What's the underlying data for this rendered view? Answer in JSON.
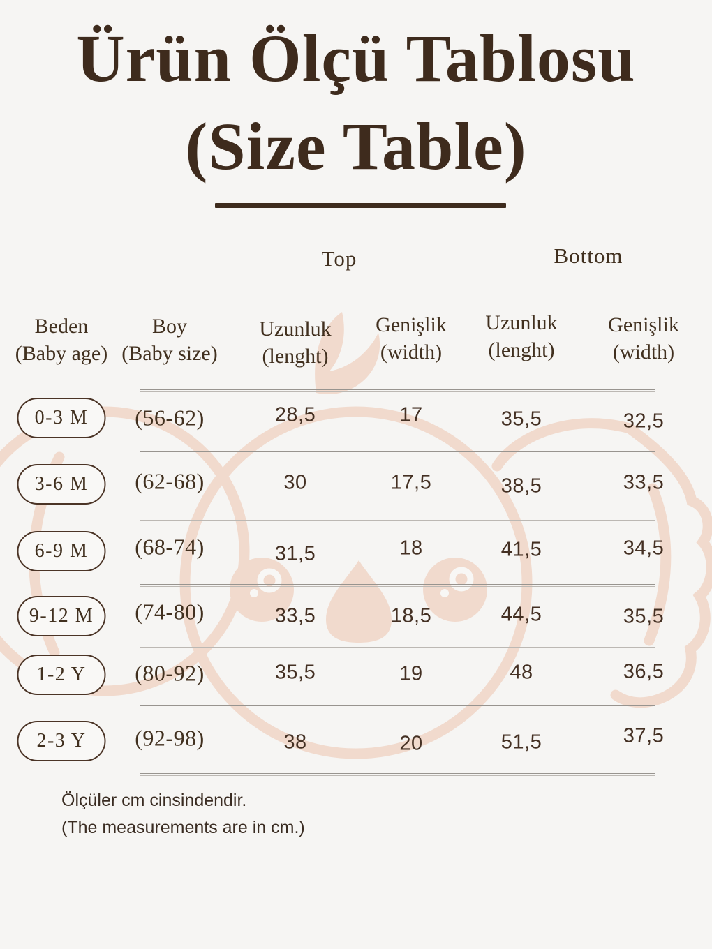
{
  "page": {
    "title_line1": "Ürün Ölçü Tablosu",
    "title_line2": "(Size Table)",
    "footer_line1": "Ölçüler cm cinsindendir.",
    "footer_line2": "(The measurements are in cm.)"
  },
  "table": {
    "group_headers": {
      "top": "Top",
      "bottom": "Bottom"
    },
    "columns": [
      {
        "line1": "Beden",
        "line2": "(Baby age)"
      },
      {
        "line1": "Boy",
        "line2": "(Baby size)"
      },
      {
        "line1": "Uzunluk",
        "line2": "(lenght)"
      },
      {
        "line1": "Genişlik",
        "line2": "(width)"
      },
      {
        "line1": "Uzunluk",
        "line2": "(lenght)"
      },
      {
        "line1": "Genişlik",
        "line2": "(width)"
      }
    ],
    "rows": [
      {
        "size": "0-3 M",
        "boy": "(56-62)",
        "top_length": "28,5",
        "top_width": "17",
        "bottom_length": "35,5",
        "bottom_width": "32,5"
      },
      {
        "size": "3-6 M",
        "boy": "(62-68)",
        "top_length": "30",
        "top_width": "17,5",
        "bottom_length": "38,5",
        "bottom_width": "33,5"
      },
      {
        "size": "6-9 M",
        "boy": "(68-74)",
        "top_length": "31,5",
        "top_width": "18",
        "bottom_length": "41,5",
        "bottom_width": "34,5"
      },
      {
        "size": "9-12 M",
        "boy": "(74-80)",
        "top_length": "33,5",
        "top_width": "18,5",
        "bottom_length": "44,5",
        "bottom_width": "35,5"
      },
      {
        "size": "1-2 Y",
        "boy": "(80-92)",
        "top_length": "35,5",
        "top_width": "19",
        "bottom_length": "48",
        "bottom_width": "36,5"
      },
      {
        "size": "2-3 Y",
        "boy": "(92-98)",
        "top_length": "38",
        "top_width": "20",
        "bottom_length": "51,5",
        "bottom_width": "37,5"
      }
    ]
  },
  "colors": {
    "background": "#f6f5f3",
    "text_brown": "#3e2b1d",
    "badge_border": "#4b3426",
    "separator_gray": "#98948f",
    "watermark_pink": "#f1dacd"
  },
  "icons": {
    "watermark": "koala-face-watermark"
  }
}
